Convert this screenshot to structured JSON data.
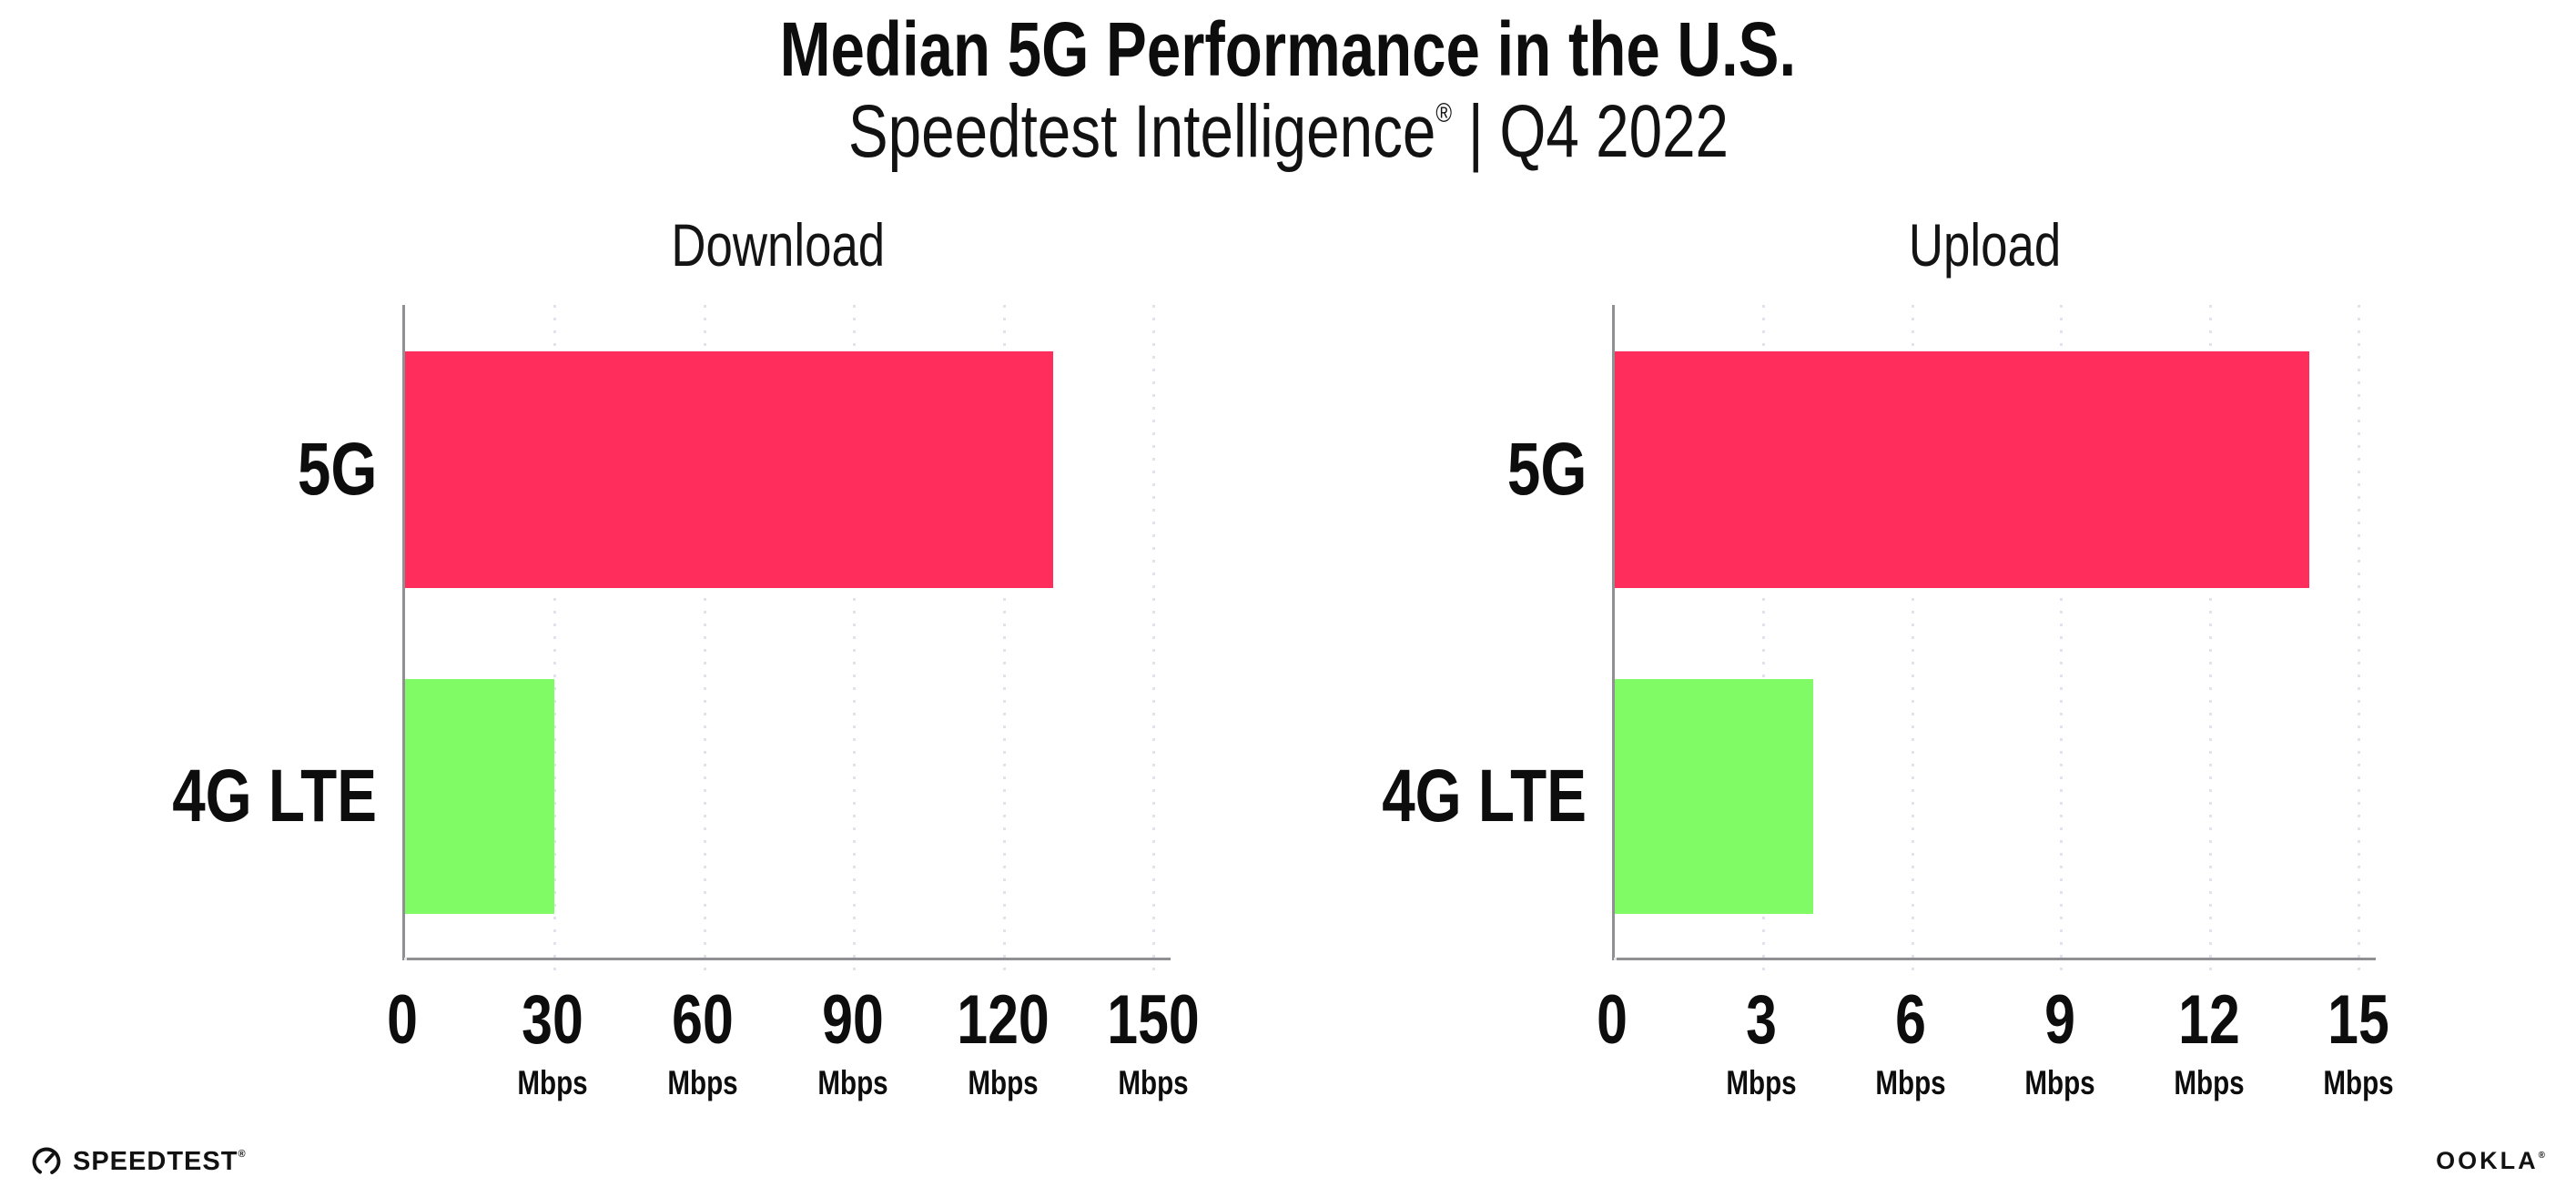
{
  "header": {
    "title": "Median 5G Performance in the U.S.",
    "subtitle_brand": "Speedtest Intelligence",
    "subtitle_reg": "®",
    "subtitle_separator": "|",
    "subtitle_period": "Q4 2022"
  },
  "chart_data": [
    {
      "type": "bar",
      "orientation": "horizontal",
      "title": "Download",
      "categories": [
        "5G",
        "4G LTE"
      ],
      "values": [
        130,
        30
      ],
      "unit": "Mbps",
      "xlim": [
        0,
        150
      ],
      "ticks": [
        0,
        30,
        60,
        90,
        120,
        150
      ],
      "tick_unit": "Mbps",
      "bar_colors": [
        "#FF2D5B",
        "#80FB66"
      ],
      "grid": "dotted-vertical",
      "legend": "none",
      "value_labels": false
    },
    {
      "type": "bar",
      "orientation": "horizontal",
      "title": "Upload",
      "categories": [
        "5G",
        "4G LTE"
      ],
      "values": [
        14,
        4
      ],
      "unit": "Mbps",
      "xlim": [
        0,
        15
      ],
      "ticks": [
        0,
        3,
        6,
        9,
        12,
        15
      ],
      "tick_unit": "Mbps",
      "bar_colors": [
        "#FF2D5B",
        "#80FB66"
      ],
      "grid": "dotted-vertical",
      "legend": "none",
      "value_labels": false
    }
  ],
  "footer": {
    "speedtest_logo_text": "SPEEDTEST",
    "speedtest_reg": "®",
    "ookla_logo_text": "OOKLA",
    "ookla_reg": "®"
  },
  "colors": {
    "bar_5g": "#FF2D5B",
    "bar_4g_lte": "#80FB66",
    "axis": "#8F8F94",
    "gridline": "#E1E2EC",
    "text": "#111111",
    "background": "#FFFFFF"
  }
}
